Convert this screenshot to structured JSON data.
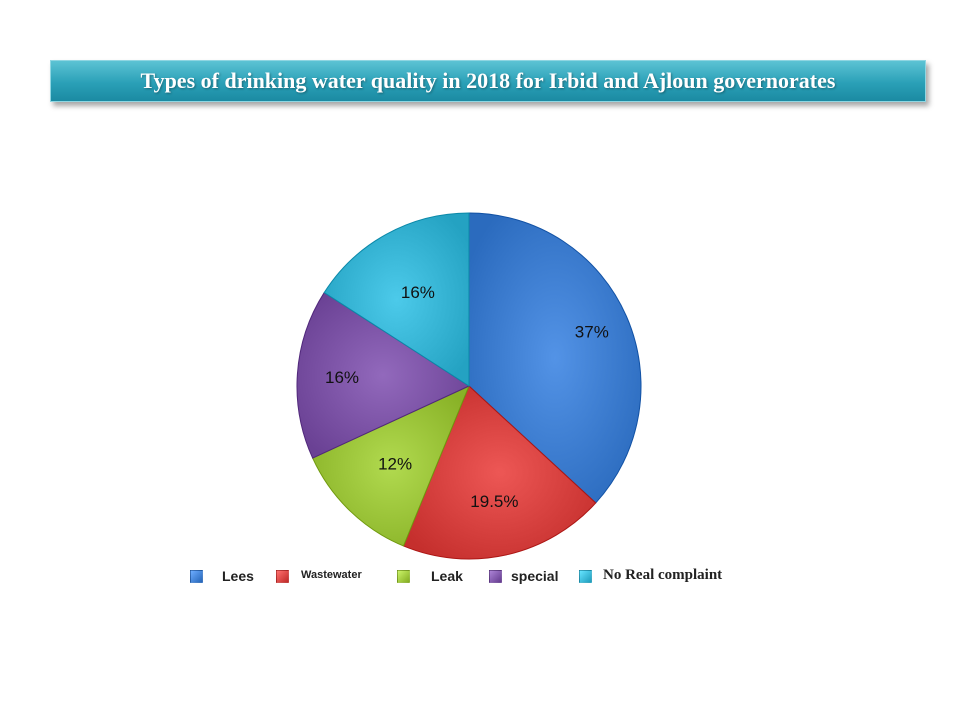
{
  "chart_data": {
    "type": "pie",
    "title": "Types of drinking water quality in 2018 for Irbid and Ajloun governorates",
    "categories": [
      "Lees",
      "Wastewater",
      "Leak",
      "special",
      "No Real complaint"
    ],
    "values": [
      37,
      19.5,
      12,
      16,
      16
    ],
    "value_labels": [
      "37%",
      "19.5%",
      "12%",
      "16%",
      "16%"
    ],
    "colors": [
      "#3f7fd2",
      "#d94341",
      "#9dc63b",
      "#7e55a8",
      "#38b6d6"
    ],
    "legend_position": "bottom"
  }
}
